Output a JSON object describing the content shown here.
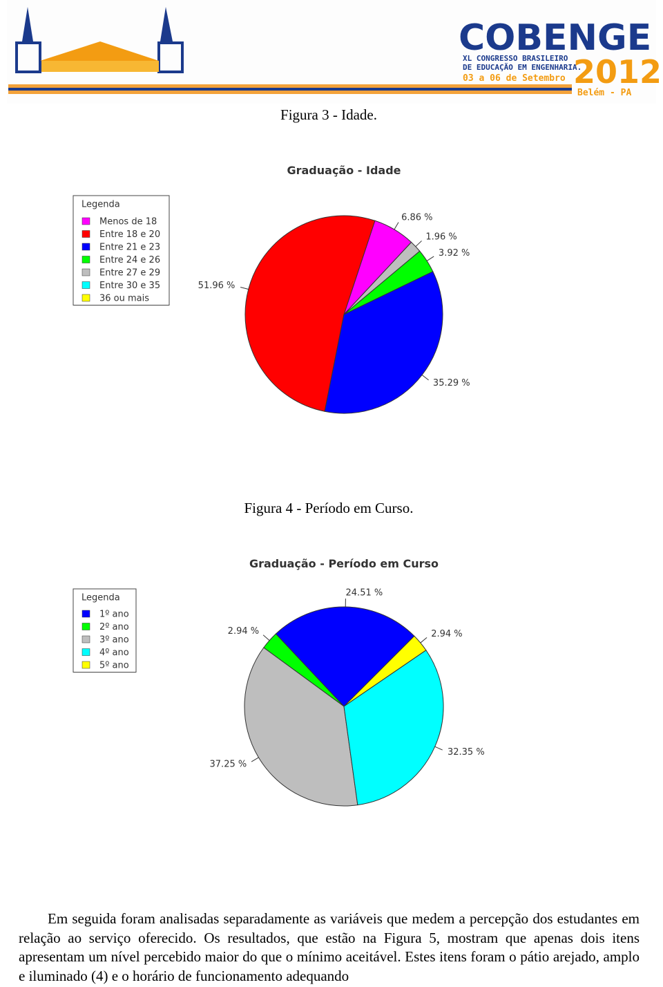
{
  "header": {
    "logo_title": "COBENGE",
    "logo_line1": "XL CONGRESSO BRASILEIRO",
    "logo_line2": "DE EDUCAÇÃO EM ENGENHARIA.",
    "logo_dates": "03 a 06 de Setembro",
    "logo_year": "2012",
    "logo_place": "Belém - PA"
  },
  "captions": [
    "Figura 3 - Idade.",
    "Figura 4 - Período em Curso."
  ],
  "chart_data": [
    {
      "type": "pie",
      "title": "Graduação - Idade",
      "legend_title": "Legenda",
      "categories": [
        "Menos de 18",
        "Entre 18 e 20",
        "Entre 21 e 23",
        "Entre 24 e 26",
        "Entre 27 e 29",
        "Entre 30 e 35",
        "36 ou mais"
      ],
      "colors": [
        "#ff00ff",
        "#ff0000",
        "#0000ff",
        "#00ff00",
        "#bebebe",
        "#00ffff",
        "#ffff00"
      ],
      "values": [
        6.86,
        51.96,
        35.29,
        3.92,
        1.96,
        0,
        0
      ],
      "value_labels": [
        "6.86 %",
        "51.96 %",
        "35.29 %",
        "3.92 %",
        "1.96 %",
        null,
        null
      ]
    },
    {
      "type": "pie",
      "title": "Graduação - Período em Curso",
      "legend_title": "Legenda",
      "categories": [
        "1º ano",
        "2º ano",
        "3º ano",
        "4º ano",
        "5º ano"
      ],
      "colors": [
        "#0000ff",
        "#00ff00",
        "#bebebe",
        "#00ffff",
        "#ffff00"
      ],
      "values": [
        24.51,
        2.94,
        37.25,
        32.35,
        2.94
      ],
      "value_labels": [
        "24.51 %",
        "2.94 %",
        "37.25 %",
        "32.35 %",
        "2.94 %"
      ]
    }
  ],
  "paragraph": "Em seguida foram analisadas separadamente as variáveis que medem a percepção dos estudantes em relação ao serviço oferecido. Os resultados, que estão na Figura 5, mostram que apenas dois itens apresentam um nível percebido maior do que o mínimo aceitável. Estes itens foram o pátio arejado, amplo e iluminado (4) e o horário de funcionamento adequando"
}
